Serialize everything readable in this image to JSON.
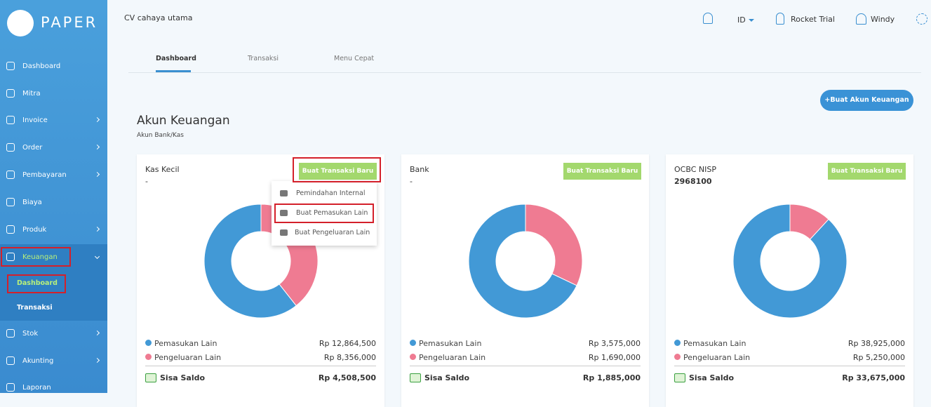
{
  "sidebar": {
    "logo": "PAPER",
    "menu": [
      "Dashboard",
      "Mitra",
      "Invoice",
      "Order",
      "Pembayaran",
      "Biaya",
      "Produk",
      "Keuangan",
      "Stok",
      "Akunting",
      "Laporan"
    ],
    "submenu": [
      "Dashboard",
      "Transaksi"
    ]
  },
  "topbar": {
    "company": "CV cahaya utama",
    "language": "ID",
    "plan": "Rocket Trial",
    "user": "Windy"
  },
  "tabs": [
    "Dashboard",
    "Transaksi",
    "Menu Cepat"
  ],
  "create_button": "+Buat Akun Keuangan",
  "section": {
    "title": "Akun Keuangan",
    "subtitle": "Akun Bank/Kas"
  },
  "dropdown": [
    "Pemindahan Internal",
    "Buat Pemasukan Lain",
    "Buat Pengeluaran Lain"
  ],
  "cards": [
    {
      "name": "Kas Kecil",
      "number": "-",
      "action": "Buat Transaksi Baru",
      "chart_data": {
        "type": "pie",
        "categories": [
          "Pemasukan Lain",
          "Pengeluaran Lain"
        ],
        "values": [
          12864500,
          8356000
        ],
        "value_labels": [
          "Rp 12,864,500",
          "Rp 8,356,000"
        ],
        "colors": [
          "#4299d6",
          "#ef7b92"
        ]
      },
      "balance_label": "Sisa Saldo",
      "balance": "Rp 4,508,500"
    },
    {
      "name": "Bank",
      "number": "-",
      "action": "Buat Transaksi Baru",
      "chart_data": {
        "type": "pie",
        "categories": [
          "Pemasukan Lain",
          "Pengeluaran Lain"
        ],
        "values": [
          3575000,
          1690000
        ],
        "value_labels": [
          "Rp 3,575,000",
          "Rp 1,690,000"
        ],
        "colors": [
          "#4299d6",
          "#ef7b92"
        ]
      },
      "balance_label": "Sisa Saldo",
      "balance": "Rp 1,885,000"
    },
    {
      "name": "OCBC NISP",
      "number": "2968100",
      "action": "Buat Transaksi Baru",
      "chart_data": {
        "type": "pie",
        "categories": [
          "Pemasukan Lain",
          "Pengeluaran Lain"
        ],
        "values": [
          38925000,
          5250000
        ],
        "value_labels": [
          "Rp 38,925,000",
          "Rp 5,250,000"
        ],
        "colors": [
          "#4299d6",
          "#ef7b92"
        ]
      },
      "balance_label": "Sisa Saldo",
      "balance": "Rp 33,675,000"
    }
  ]
}
